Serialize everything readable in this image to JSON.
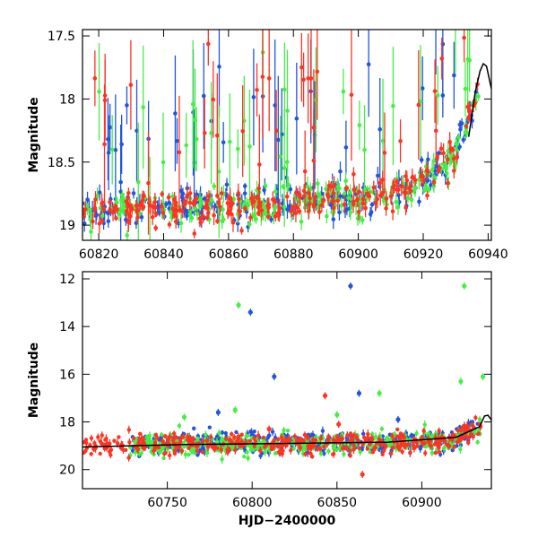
{
  "chart_data": [
    {
      "type": "scatter",
      "title": "",
      "xlabel": "",
      "ylabel": "Magnitude",
      "xlim": [
        60815,
        60941
      ],
      "ylim": [
        19.12,
        17.45
      ],
      "y_inverted": true,
      "x_ticks": [
        60820,
        60840,
        60860,
        60880,
        60900,
        60920,
        60940
      ],
      "y_ticks": [
        17.5,
        18,
        18.5,
        19
      ],
      "x_tick_labels": [
        "60820",
        "60840",
        "60860",
        "60880",
        "60900",
        "60920",
        "60940"
      ],
      "y_tick_labels": [
        "17.5",
        "18",
        "18.5",
        "19"
      ],
      "grid": false,
      "series": [
        {
          "color": "#2255dd",
          "trend": [
            [
              60815,
              18.87
            ],
            [
              60840,
              18.86
            ],
            [
              60860,
              18.84
            ],
            [
              60880,
              18.82
            ],
            [
              60900,
              18.78
            ],
            [
              60915,
              18.72
            ],
            [
              60925,
              18.55
            ],
            [
              60930,
              18.4
            ],
            [
              60935,
              18.1
            ],
            [
              60937,
              17.85
            ]
          ]
        },
        {
          "color": "#44ee44",
          "trend": [
            [
              60815,
              18.9
            ],
            [
              60840,
              18.88
            ],
            [
              60860,
              18.86
            ],
            [
              60880,
              18.83
            ],
            [
              60900,
              18.79
            ],
            [
              60915,
              18.74
            ],
            [
              60925,
              18.57
            ],
            [
              60930,
              18.42
            ],
            [
              60935,
              18.12
            ],
            [
              60937,
              17.9
            ]
          ]
        },
        {
          "color": "#ff3322",
          "trend": [
            [
              60815,
              18.88
            ],
            [
              60840,
              18.87
            ],
            [
              60860,
              18.85
            ],
            [
              60880,
              18.82
            ],
            [
              60900,
              18.78
            ],
            [
              60915,
              18.73
            ],
            [
              60925,
              18.56
            ],
            [
              60930,
              18.41
            ],
            [
              60935,
              18.1
            ],
            [
              60937,
              17.86
            ]
          ]
        }
      ],
      "model_curve": {
        "color": "#000000",
        "points": [
          [
            60934,
            18.3
          ],
          [
            60936,
            17.95
          ],
          [
            60937.5,
            17.78
          ],
          [
            60938.5,
            17.72
          ],
          [
            60939.5,
            17.74
          ],
          [
            60941,
            17.92
          ]
        ]
      }
    },
    {
      "type": "scatter",
      "title": "",
      "xlabel": "HJD−2400000",
      "ylabel": "Magnitude",
      "xlim": [
        60700,
        60941
      ],
      "ylim": [
        20.8,
        11.7
      ],
      "y_inverted": true,
      "x_ticks": [
        60750,
        60800,
        60850,
        60900
      ],
      "y_ticks": [
        12,
        14,
        16,
        18,
        20
      ],
      "x_tick_labels": [
        "60750",
        "60800",
        "60850",
        "60900"
      ],
      "y_tick_labels": [
        "12",
        "14",
        "16",
        "18",
        "20"
      ],
      "grid": false,
      "series": [
        {
          "color": "#2255dd",
          "trend": [
            [
              60728,
              18.85
            ],
            [
              60800,
              18.88
            ],
            [
              60860,
              18.87
            ],
            [
              60900,
              18.82
            ],
            [
              60920,
              18.7
            ],
            [
              60935,
              18.1
            ]
          ],
          "outliers": [
            [
              60799,
              13.4
            ],
            [
              60813,
              16.1
            ],
            [
              60858,
              12.3
            ],
            [
              60863,
              16.8
            ],
            [
              60780,
              17.6
            ],
            [
              60886,
              17.9
            ]
          ]
        },
        {
          "color": "#44ee44",
          "trend": [
            [
              60728,
              18.95
            ],
            [
              60800,
              18.92
            ],
            [
              60860,
              18.9
            ],
            [
              60900,
              18.85
            ],
            [
              60920,
              18.72
            ],
            [
              60935,
              18.15
            ]
          ],
          "outliers": [
            [
              60792,
              13.1
            ],
            [
              60925,
              12.3
            ],
            [
              60936,
              16.1
            ],
            [
              60923,
              16.3
            ],
            [
              60875,
              16.8
            ],
            [
              60760,
              17.8
            ],
            [
              60790,
              17.5
            ],
            [
              60850,
              17.7
            ]
          ]
        },
        {
          "color": "#ff3322",
          "trend": [
            [
              60705,
              19.0
            ],
            [
              60728,
              18.9
            ],
            [
              60800,
              18.9
            ],
            [
              60860,
              18.88
            ],
            [
              60900,
              18.83
            ],
            [
              60920,
              18.7
            ],
            [
              60935,
              18.1
            ]
          ],
          "outliers": [
            [
              60843,
              16.9
            ],
            [
              60865,
              20.2
            ],
            [
              60851,
              18.1
            ],
            [
              60810,
              18.3
            ]
          ]
        }
      ],
      "model_curve": {
        "color": "#000000",
        "points": [
          [
            60700,
            19.05
          ],
          [
            60760,
            18.95
          ],
          [
            60820,
            18.9
          ],
          [
            60880,
            18.85
          ],
          [
            60920,
            18.65
          ],
          [
            60934,
            18.2
          ],
          [
            60937,
            17.75
          ],
          [
            60939,
            17.72
          ],
          [
            60941,
            17.92
          ]
        ]
      }
    }
  ]
}
